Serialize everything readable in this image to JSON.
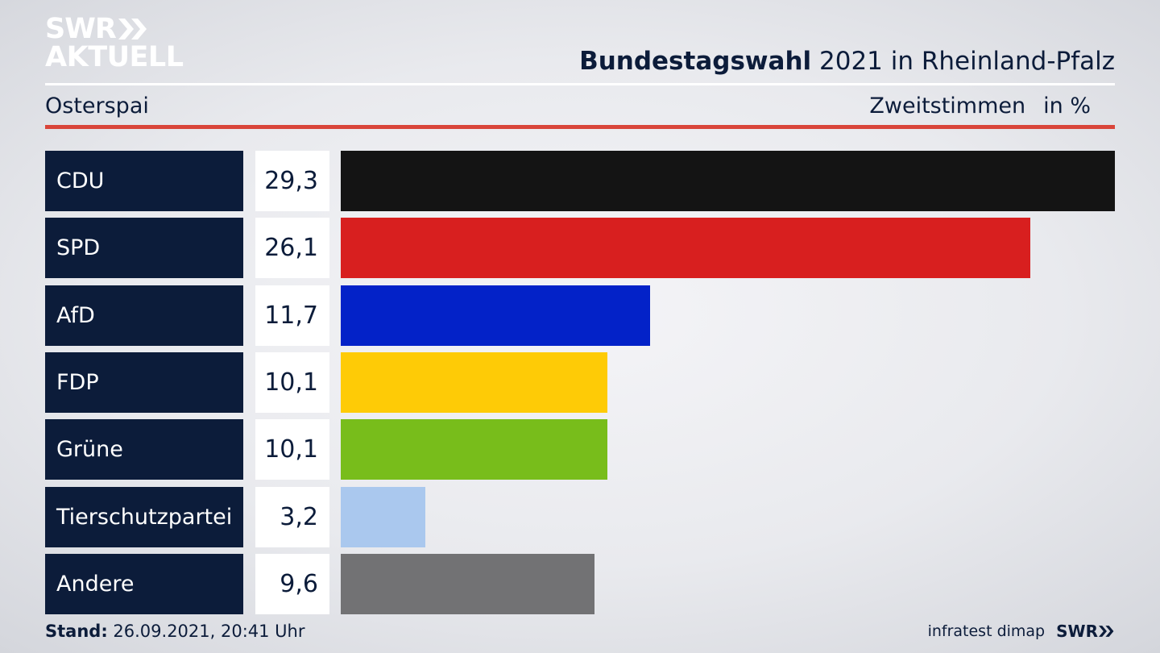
{
  "logo": {
    "line1": "SWR",
    "line2": "AKTUELL"
  },
  "header": {
    "title_bold": "Bundestagswahl",
    "title_rest": " 2021 in Rheinland-Pfalz",
    "location": "Osterspai",
    "measure": "Zweitstimmen",
    "unit": "in %"
  },
  "footer": {
    "stand_label": "Stand:",
    "stand_value": " 26.09.2021, 20:41 Uhr",
    "source": "infratest dimap",
    "brand": "SWR"
  },
  "colors": {
    "panel": "#0c1c3a",
    "accent_red": "#d9453a"
  },
  "chart_data": {
    "type": "bar",
    "orientation": "horizontal",
    "categories": [
      "CDU",
      "SPD",
      "AfD",
      "FDP",
      "Grüne",
      "Tierschutzpartei",
      "Andere"
    ],
    "values": [
      29.3,
      26.1,
      11.7,
      10.1,
      10.1,
      3.2,
      9.6
    ],
    "labels": [
      "29,3",
      "26,1",
      "11,7",
      "10,1",
      "10,1",
      "3,2",
      "9,6"
    ],
    "colors": [
      "#141414",
      "#d81f1f",
      "#0322c8",
      "#fecb06",
      "#78bd1b",
      "#aac8ee",
      "#727274"
    ],
    "title": "",
    "xlabel": "",
    "ylabel": "",
    "xlim": [
      0,
      29.3
    ],
    "grid": false,
    "legend": "none"
  }
}
